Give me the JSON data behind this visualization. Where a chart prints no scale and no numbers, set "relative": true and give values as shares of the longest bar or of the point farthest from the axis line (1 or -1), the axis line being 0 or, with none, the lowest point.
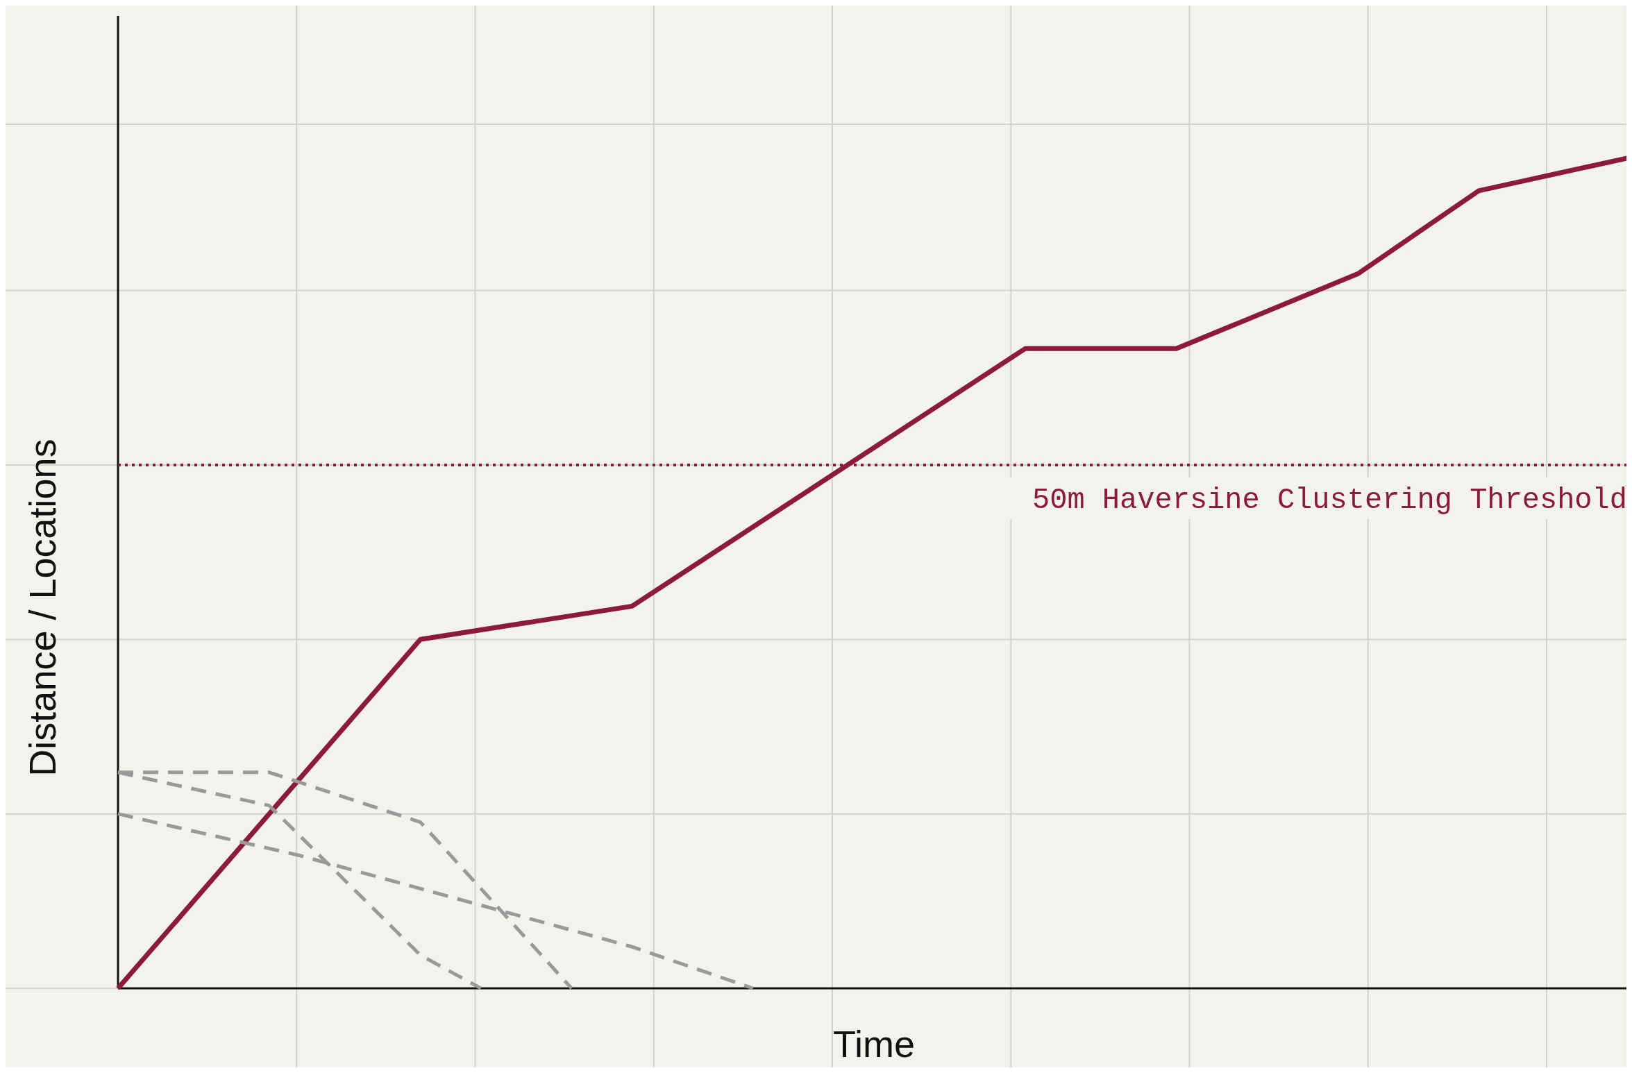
{
  "chart_data": {
    "type": "line",
    "relative": true,
    "xlabel": "Time",
    "ylabel": "Distance / Locations",
    "grid": true,
    "marker": "none",
    "categories": [
      null,
      null,
      null,
      null,
      null,
      null,
      null,
      null,
      null,
      null,
      null,
      null,
      null,
      null,
      null,
      null,
      null,
      null,
      null,
      null,
      null,
      null,
      null,
      null,
      null,
      null,
      null,
      null,
      null,
      null,
      null,
      null,
      null,
      null,
      null,
      null,
      null,
      null,
      null,
      null,
      null,
      null,
      null,
      null,
      null,
      null,
      null,
      null,
      null,
      null,
      null
    ],
    "series": [
      {
        "color": "#8b1a3d",
        "line_style": "solid",
        "values": [
          0,
          null,
          null,
          null,
          null,
          null,
          null,
          null,
          null,
          null,
          0.42,
          null,
          null,
          null,
          null,
          null,
          null,
          0.46,
          null,
          null,
          null,
          null,
          null,
          null,
          null,
          null,
          null,
          null,
          null,
          null,
          0.77,
          null,
          null,
          null,
          null,
          0.77,
          null,
          null,
          null,
          null,
          null,
          0.86,
          null,
          null,
          null,
          0.96,
          null,
          null,
          null,
          null,
          1.0
        ]
      },
      {
        "color": "#999999",
        "line_style": "dashed",
        "values": [
          0.26,
          null,
          null,
          null,
          null,
          0.26,
          null,
          null,
          null,
          null,
          0.2,
          null,
          null,
          null,
          null,
          0,
          null,
          null,
          null,
          null,
          null,
          null,
          null,
          null,
          null,
          null,
          null,
          null,
          null,
          null,
          null,
          null,
          null,
          null,
          null,
          null,
          null,
          null,
          null,
          null,
          null,
          null,
          null,
          null,
          null,
          null,
          null,
          null,
          null,
          null,
          null
        ]
      },
      {
        "color": "#999999",
        "line_style": "dashed",
        "values": [
          0.26,
          null,
          null,
          null,
          null,
          0.22,
          null,
          null,
          null,
          null,
          0.04,
          null,
          0,
          null,
          null,
          null,
          null,
          null,
          null,
          null,
          null,
          null,
          null,
          null,
          null,
          null,
          null,
          null,
          null,
          null,
          null,
          null,
          null,
          null,
          null,
          null,
          null,
          null,
          null,
          null,
          null,
          null,
          null,
          null,
          null,
          null,
          null,
          null,
          null,
          null,
          null
        ]
      },
      {
        "color": "#999999",
        "line_style": "dashed",
        "values": [
          0.21,
          null,
          null,
          null,
          null,
          null,
          0.16,
          null,
          null,
          null,
          0.12,
          null,
          null,
          null,
          null,
          null,
          null,
          0.05,
          null,
          null,
          null,
          0,
          null,
          null,
          null,
          null,
          null,
          null,
          null,
          null,
          null,
          null,
          null,
          null,
          null,
          null,
          null,
          null,
          null,
          null,
          null,
          null,
          null,
          null,
          null,
          null,
          null,
          null,
          null,
          null,
          null
        ]
      }
    ],
    "ref_lines": [
      {
        "axis": "y",
        "value": 0.63,
        "label": "50m Haversine Clustering Threshold",
        "color": "#8b1a3d",
        "line_style": "dotted"
      }
    ]
  }
}
